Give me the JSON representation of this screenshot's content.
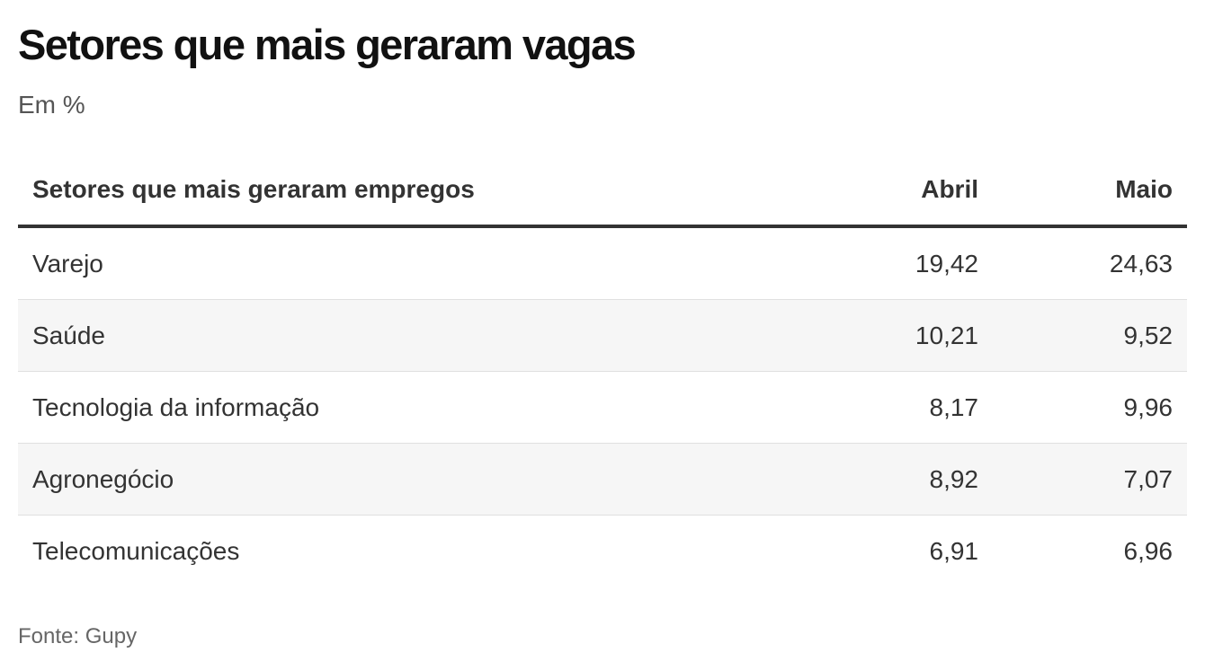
{
  "chart_data": {
    "type": "table",
    "title": "Setores que mais geraram vagas",
    "subtitle": "Em %",
    "columns": [
      "Setores que mais geraram empregos",
      "Abril",
      "Maio"
    ],
    "rows": [
      {
        "sector": "Varejo",
        "abril": "19,42",
        "maio": "24,63"
      },
      {
        "sector": "Saúde",
        "abril": "10,21",
        "maio": "9,52"
      },
      {
        "sector": "Tecnologia da informação",
        "abril": "8,17",
        "maio": "9,96"
      },
      {
        "sector": "Agronegócio",
        "abril": "8,92",
        "maio": "7,07"
      },
      {
        "sector": "Telecomunicações",
        "abril": "6,91",
        "maio": "6,96"
      }
    ],
    "source": "Fonte: Gupy"
  },
  "colors": {
    "header_rule": "#333333",
    "row_alt_bg": "#f6f6f6",
    "row_divider": "#e0e0e0"
  }
}
